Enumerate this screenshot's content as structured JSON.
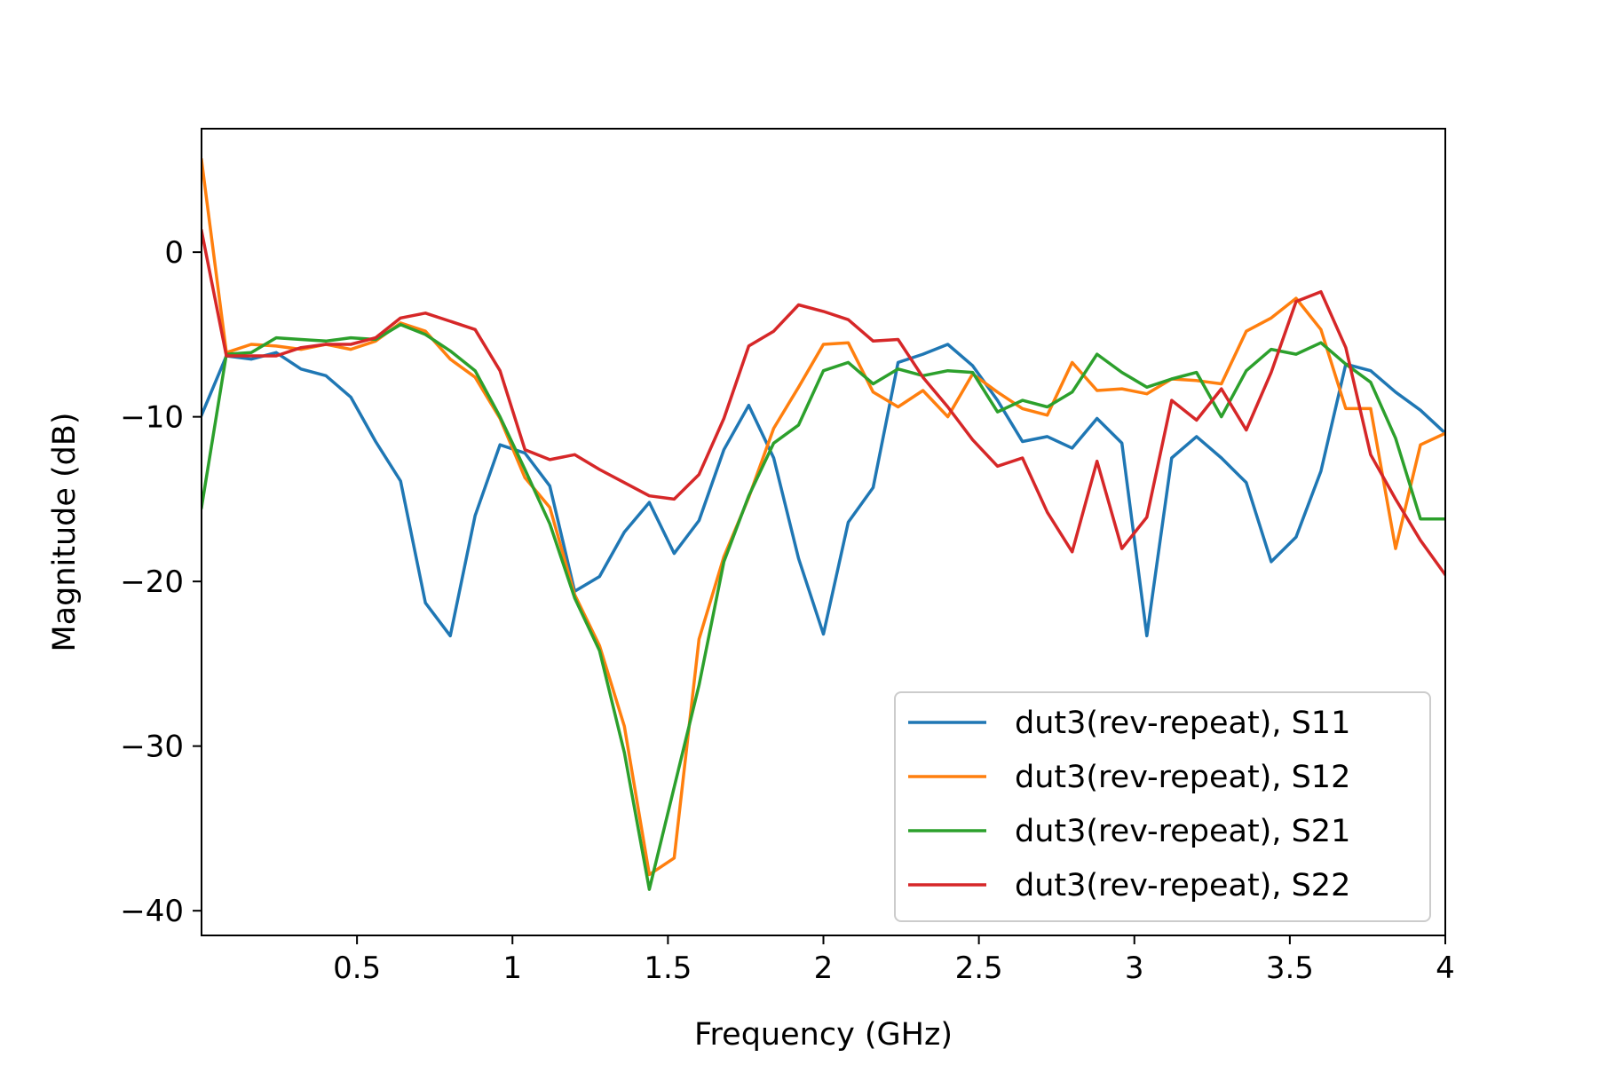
{
  "chart_data": {
    "type": "line",
    "title": "",
    "xlabel": "Frequency (GHz)",
    "ylabel": "Magnitude (dB)",
    "xlim": [
      0,
      4
    ],
    "ylim": [
      -41.5,
      7.5
    ],
    "xticks": [
      0.5,
      1,
      1.5,
      2,
      2.5,
      3,
      3.5,
      4
    ],
    "xtick_labels": [
      "0.5",
      "1",
      "1.5",
      "2",
      "2.5",
      "3",
      "3.5",
      "4"
    ],
    "yticks": [
      0,
      -10,
      -20,
      -30,
      -40
    ],
    "ytick_labels": [
      "0",
      "−10",
      "−20",
      "−30",
      "−40"
    ],
    "grid": false,
    "legend_position": "lower-right",
    "x": [
      0,
      0.08,
      0.16,
      0.24,
      0.32,
      0.4,
      0.48,
      0.56,
      0.64,
      0.72,
      0.8,
      0.88,
      0.96,
      1.04,
      1.12,
      1.2,
      1.28,
      1.36,
      1.44,
      1.52,
      1.6,
      1.68,
      1.76,
      1.84,
      1.92,
      2.0,
      2.08,
      2.16,
      2.24,
      2.32,
      2.4,
      2.48,
      2.56,
      2.64,
      2.72,
      2.8,
      2.88,
      2.96,
      3.04,
      3.12,
      3.2,
      3.28,
      3.36,
      3.44,
      3.52,
      3.6,
      3.68,
      3.76,
      3.84,
      3.92,
      4.0
    ],
    "series": [
      {
        "name": "dut3(rev-repeat), S11",
        "color": "#1f77b4",
        "values": [
          -9.9,
          -6.3,
          -6.5,
          -6.1,
          -7.1,
          -7.5,
          -8.8,
          -11.5,
          -13.9,
          -21.3,
          -23.3,
          -16.0,
          -11.7,
          -12.2,
          -14.2,
          -20.6,
          -19.7,
          -17.0,
          -15.2,
          -18.3,
          -16.3,
          -12.0,
          -9.3,
          -12.5,
          -18.6,
          -23.2,
          -16.4,
          -14.3,
          -6.7,
          -6.2,
          -5.6,
          -6.9,
          -9.0,
          -11.5,
          -11.2,
          -11.9,
          -10.1,
          -11.6,
          -23.3,
          -12.5,
          -11.2,
          -12.5,
          -14.0,
          -18.8,
          -17.3,
          -13.3,
          -6.8,
          -7.2,
          -8.5,
          -9.6,
          -11.0
        ]
      },
      {
        "name": "dut3(rev-repeat), S12",
        "color": "#ff7f0e",
        "values": [
          5.6,
          -6.1,
          -5.6,
          -5.7,
          -5.9,
          -5.6,
          -5.9,
          -5.4,
          -4.3,
          -4.8,
          -6.5,
          -7.6,
          -10.1,
          -13.7,
          -15.5,
          -20.8,
          -23.9,
          -28.8,
          -37.8,
          -36.8,
          -23.5,
          -18.5,
          -14.9,
          -10.7,
          -8.2,
          -5.6,
          -5.5,
          -8.5,
          -9.4,
          -8.4,
          -10.0,
          -7.4,
          -8.5,
          -9.5,
          -9.9,
          -6.7,
          -8.4,
          -8.3,
          -8.6,
          -7.7,
          -7.8,
          -8.0,
          -4.8,
          -4.0,
          -2.8,
          -4.7,
          -9.5,
          -9.5,
          -18.0,
          -11.7,
          -11.0
        ]
      },
      {
        "name": "dut3(rev-repeat), S21",
        "color": "#2ca02c",
        "values": [
          -15.5,
          -6.2,
          -6.1,
          -5.2,
          -5.3,
          -5.4,
          -5.2,
          -5.3,
          -4.4,
          -5.0,
          -6.0,
          -7.2,
          -10.0,
          -13.2,
          -16.5,
          -21.0,
          -24.2,
          -30.4,
          -38.7,
          -32.5,
          -26.3,
          -18.8,
          -14.8,
          -11.6,
          -10.5,
          -7.2,
          -6.7,
          -8.0,
          -7.1,
          -7.5,
          -7.2,
          -7.3,
          -9.7,
          -9.0,
          -9.4,
          -8.5,
          -6.2,
          -7.3,
          -8.2,
          -7.7,
          -7.3,
          -10.0,
          -7.2,
          -5.9,
          -6.2,
          -5.5,
          -6.8,
          -7.9,
          -11.3,
          -16.2,
          -16.2
        ]
      },
      {
        "name": "dut3(rev-repeat), S22",
        "color": "#d62728",
        "values": [
          1.3,
          -6.3,
          -6.3,
          -6.3,
          -5.8,
          -5.6,
          -5.6,
          -5.2,
          -4.0,
          -3.7,
          -4.2,
          -4.7,
          -7.2,
          -12.0,
          -12.6,
          -12.3,
          -13.2,
          -14.0,
          -14.8,
          -15.0,
          -13.5,
          -10.1,
          -5.7,
          -4.8,
          -3.2,
          -3.6,
          -4.1,
          -5.4,
          -5.3,
          -7.6,
          -9.4,
          -11.4,
          -13.0,
          -12.5,
          -15.8,
          -18.2,
          -12.7,
          -18.0,
          -16.1,
          -9.0,
          -10.2,
          -8.3,
          -10.8,
          -7.3,
          -3.0,
          -2.4,
          -5.8,
          -12.3,
          -15.0,
          -17.5,
          -19.6
        ]
      }
    ]
  }
}
